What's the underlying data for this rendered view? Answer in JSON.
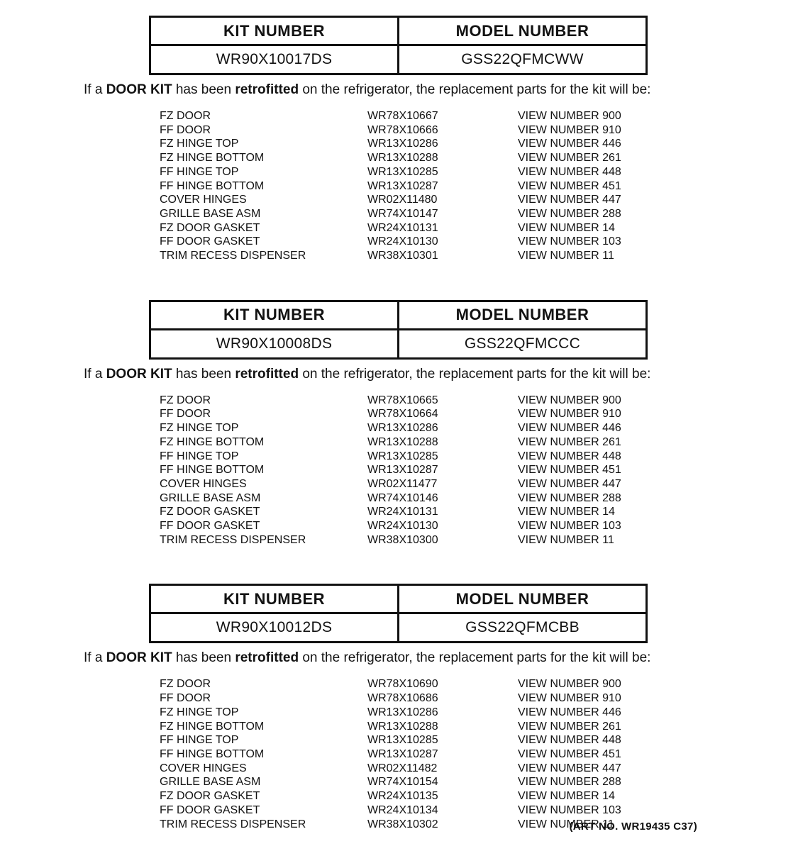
{
  "page": {
    "background": "#ffffff",
    "text_color": "#121212",
    "art_number": "(ART NO. WR19435 C37)"
  },
  "table_headers": {
    "kit": "KIT NUMBER",
    "model": "MODEL NUMBER"
  },
  "retrofit_note": {
    "part1": "If a ",
    "bold1": "DOOR KIT",
    "part2": " has been ",
    "bold2": "retrofitted",
    "part3": " on the refrigerator, the replacement parts for the kit will be:"
  },
  "sections": [
    {
      "kit_number": "WR90X10017DS",
      "model_number": "GSS22QFMCWW",
      "parts": [
        {
          "name": "FZ DOOR",
          "part_number": "WR78X10667",
          "view": "VIEW NUMBER 900"
        },
        {
          "name": "FF DOOR",
          "part_number": "WR78X10666",
          "view": "VIEW NUMBER 910"
        },
        {
          "name": "FZ HINGE TOP",
          "part_number": "WR13X10286",
          "view": "VIEW NUMBER 446"
        },
        {
          "name": "FZ HINGE BOTTOM",
          "part_number": "WR13X10288",
          "view": "VIEW NUMBER 261"
        },
        {
          "name": "FF HINGE TOP",
          "part_number": "WR13X10285",
          "view": "VIEW NUMBER 448"
        },
        {
          "name": "FF HINGE BOTTOM",
          "part_number": "WR13X10287",
          "view": "VIEW NUMBER 451"
        },
        {
          "name": "COVER HINGES",
          "part_number": "WR02X11480",
          "view": "VIEW NUMBER 447"
        },
        {
          "name": "GRILLE BASE ASM",
          "part_number": "WR74X10147",
          "view": "VIEW NUMBER 288"
        },
        {
          "name": "FZ DOOR GASKET",
          "part_number": "WR24X10131",
          "view": "VIEW NUMBER 14"
        },
        {
          "name": "FF DOOR GASKET",
          "part_number": "WR24X10130",
          "view": "VIEW NUMBER 103"
        },
        {
          "name": "TRIM RECESS DISPENSER",
          "part_number": "WR38X10301",
          "view": "VIEW NUMBER 11"
        }
      ]
    },
    {
      "kit_number": "WR90X10008DS",
      "model_number": "GSS22QFMCCC",
      "parts": [
        {
          "name": "FZ DOOR",
          "part_number": "WR78X10665",
          "view": "VIEW NUMBER 900"
        },
        {
          "name": "FF DOOR",
          "part_number": "WR78X10664",
          "view": "VIEW NUMBER 910"
        },
        {
          "name": "FZ HINGE TOP",
          "part_number": "WR13X10286",
          "view": "VIEW NUMBER 446"
        },
        {
          "name": "FZ HINGE BOTTOM",
          "part_number": "WR13X10288",
          "view": "VIEW NUMBER 261"
        },
        {
          "name": "FF HINGE TOP",
          "part_number": "WR13X10285",
          "view": "VIEW NUMBER 448"
        },
        {
          "name": "FF HINGE BOTTOM",
          "part_number": "WR13X10287",
          "view": "VIEW NUMBER 451"
        },
        {
          "name": "COVER HINGES",
          "part_number": "WR02X11477",
          "view": "VIEW NUMBER 447"
        },
        {
          "name": "GRILLE BASE ASM",
          "part_number": "WR74X10146",
          "view": "VIEW NUMBER 288"
        },
        {
          "name": "FZ DOOR GASKET",
          "part_number": "WR24X10131",
          "view": "VIEW NUMBER 14"
        },
        {
          "name": "FF DOOR GASKET",
          "part_number": "WR24X10130",
          "view": "VIEW NUMBER 103"
        },
        {
          "name": "TRIM RECESS DISPENSER",
          "part_number": "WR38X10300",
          "view": "VIEW NUMBER 11"
        }
      ]
    },
    {
      "kit_number": "WR90X10012DS",
      "model_number": "GSS22QFMCBB",
      "parts": [
        {
          "name": "FZ DOOR",
          "part_number": "WR78X10690",
          "view": "VIEW NUMBER 900"
        },
        {
          "name": "FF DOOR",
          "part_number": "WR78X10686",
          "view": "VIEW NUMBER 910"
        },
        {
          "name": "FZ HINGE TOP",
          "part_number": "WR13X10286",
          "view": "VIEW NUMBER 446"
        },
        {
          "name": "FZ HINGE BOTTOM",
          "part_number": "WR13X10288",
          "view": "VIEW NUMBER 261"
        },
        {
          "name": "FF HINGE TOP",
          "part_number": "WR13X10285",
          "view": "VIEW NUMBER 448"
        },
        {
          "name": "FF HINGE BOTTOM",
          "part_number": "WR13X10287",
          "view": "VIEW NUMBER 451"
        },
        {
          "name": "COVER HINGES",
          "part_number": "WR02X11482",
          "view": "VIEW NUMBER 447"
        },
        {
          "name": "GRILLE BASE ASM",
          "part_number": "WR74X10154",
          "view": "VIEW NUMBER 288"
        },
        {
          "name": "FZ DOOR GASKET",
          "part_number": "WR24X10135",
          "view": "VIEW NUMBER 14"
        },
        {
          "name": "FF DOOR GASKET",
          "part_number": "WR24X10134",
          "view": "VIEW NUMBER 103"
        },
        {
          "name": "TRIM RECESS DISPENSER",
          "part_number": "WR38X10302",
          "view": "VIEW NUMBER 11"
        }
      ]
    }
  ]
}
